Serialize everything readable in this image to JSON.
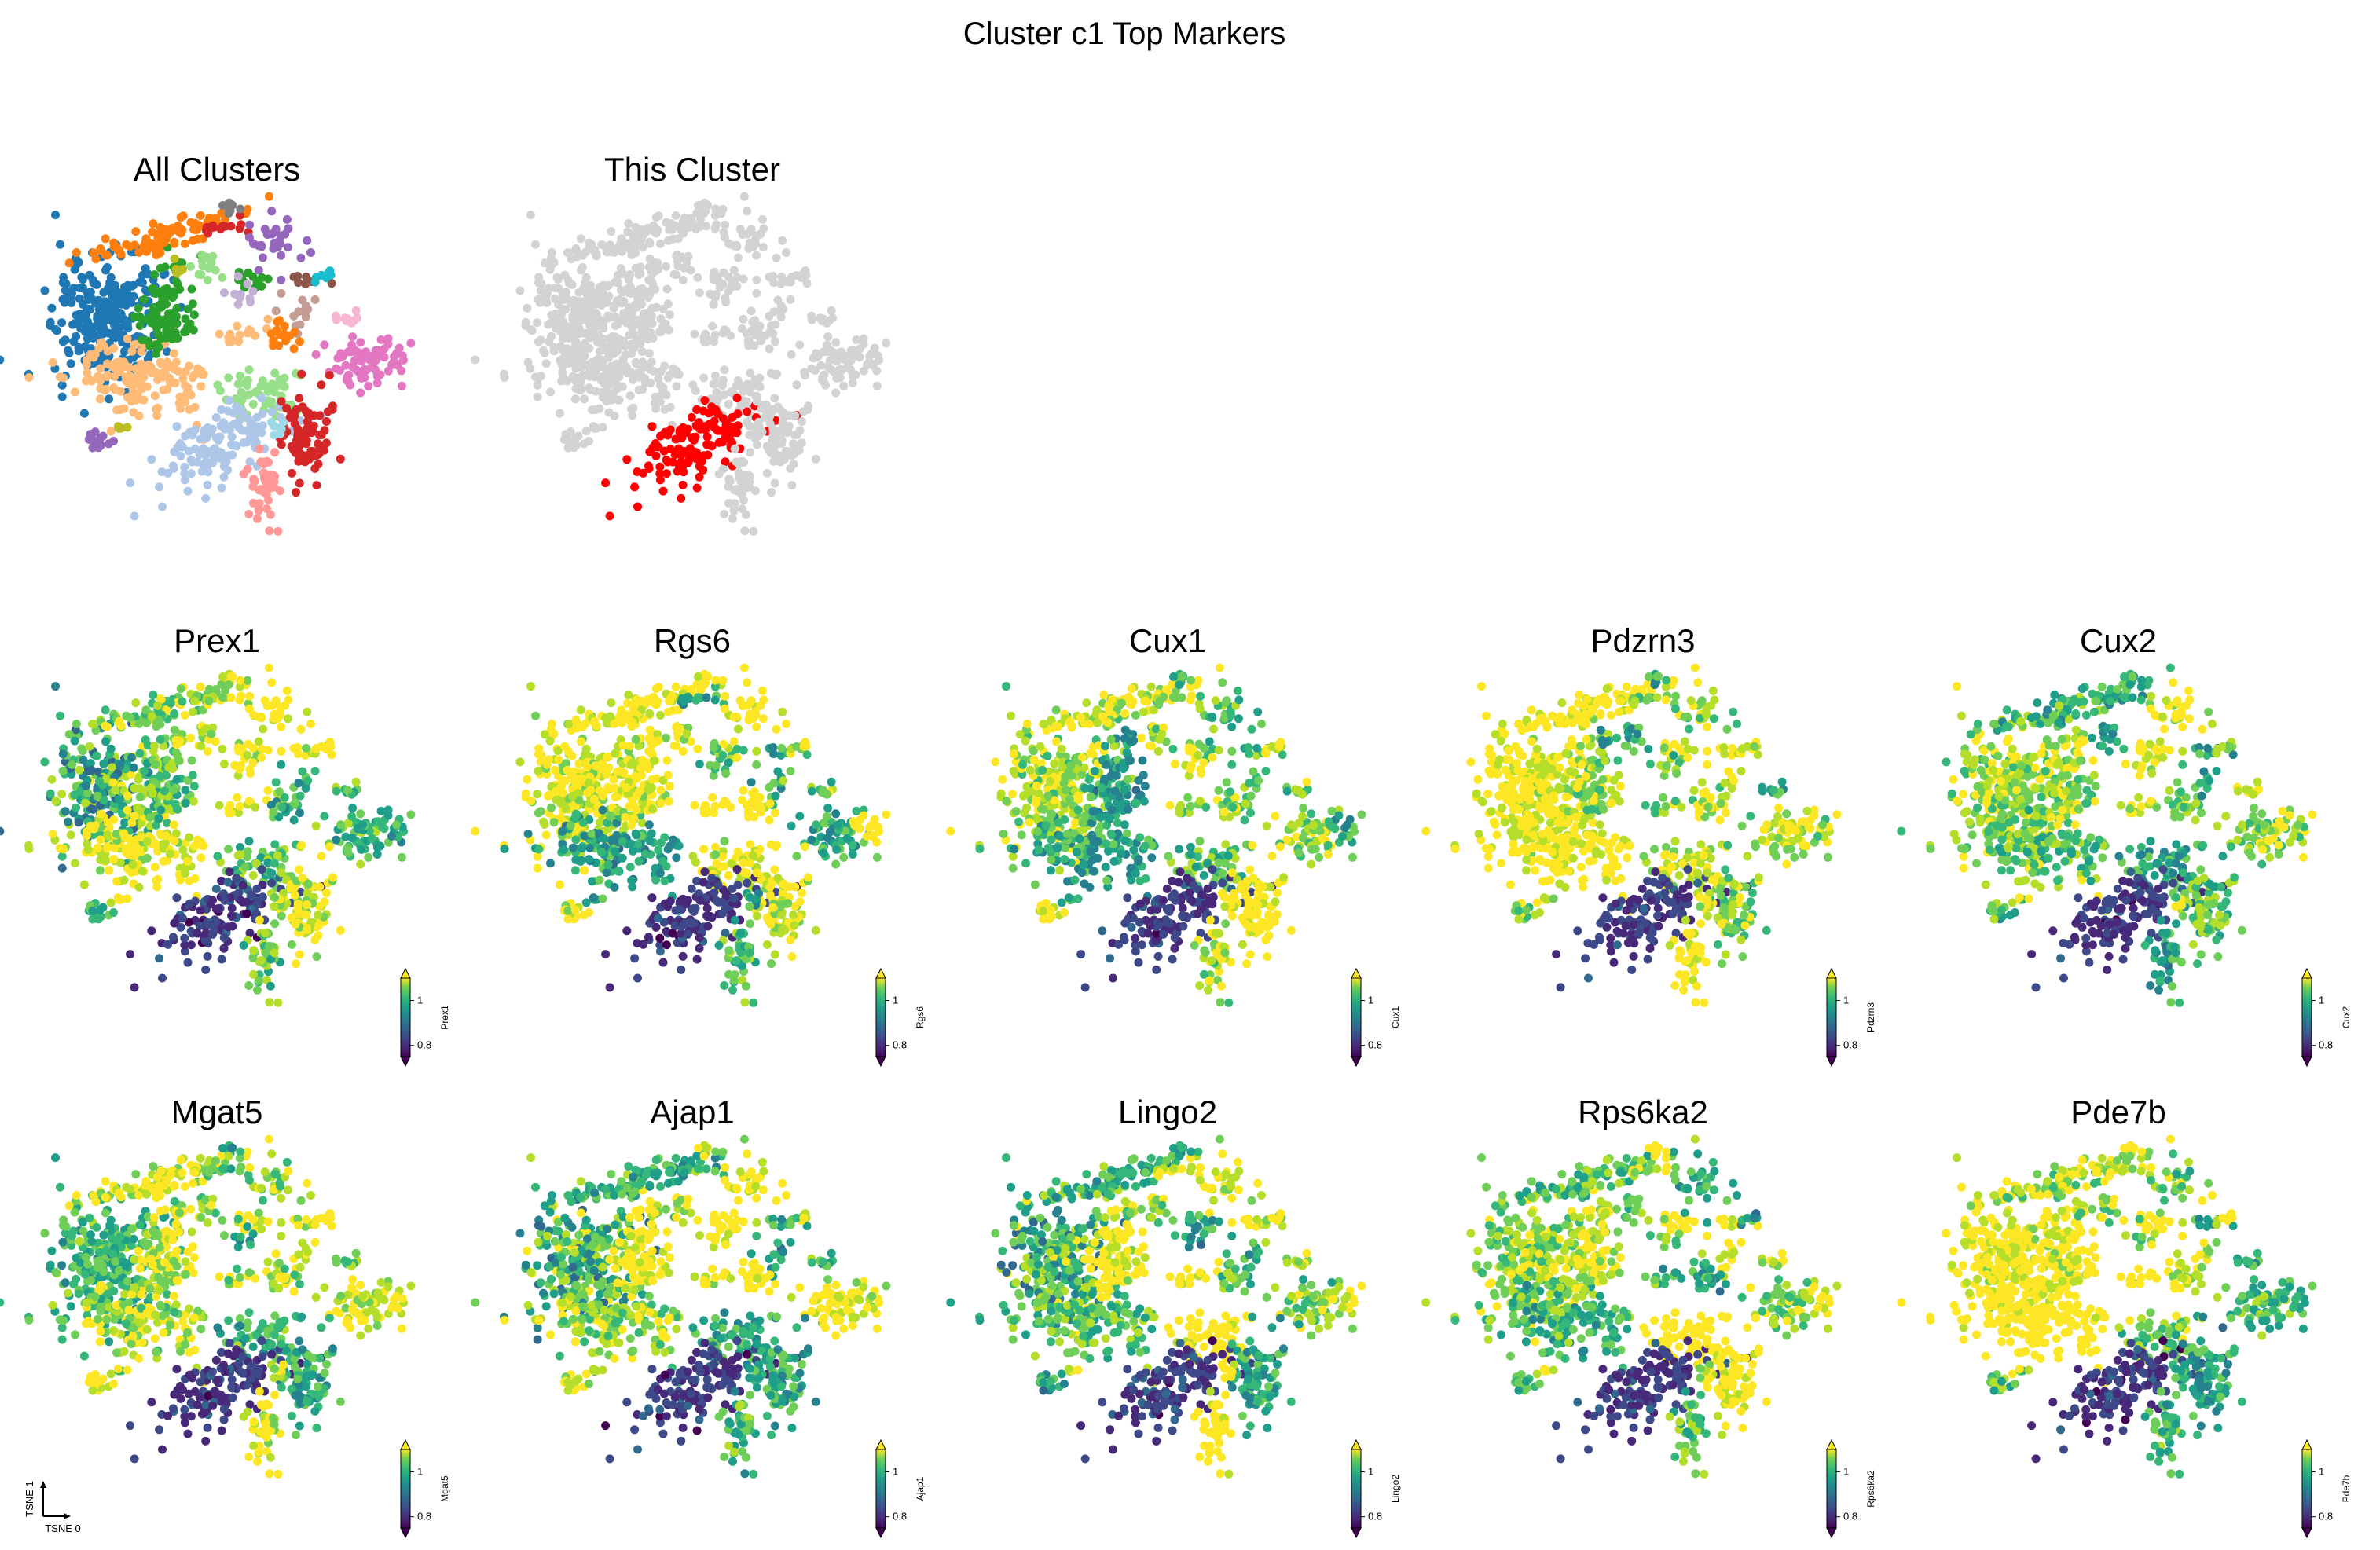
{
  "figure": {
    "title": "Cluster c1 Top Markers"
  },
  "chart_data": [
    {
      "type": "scatter",
      "title": "All Clusters",
      "coloring": "categorical cluster labels (tab20 palette), no legend",
      "palette": [
        "#1f77b4",
        "#ffbb78",
        "#2ca02c",
        "#aec7e8",
        "#98df8a",
        "#d62728",
        "#ff9896",
        "#ff7f0e",
        "#9467bd",
        "#c5b0d5",
        "#e377c2",
        "#f7b6d2",
        "#8c564b",
        "#c49c94",
        "#7f7f7f",
        "#bcbd22",
        "#17becf",
        "#9edae5"
      ]
    },
    {
      "type": "scatter",
      "title": "This Cluster",
      "coloring": "highlight",
      "highlight_color": "#ff0000",
      "background_color": "#d3d3d3"
    },
    {
      "type": "scatter",
      "title": "Prex1",
      "colormap": "viridis",
      "colorbar": {
        "label": "Prex1",
        "ticks": [
          "1",
          "0.8"
        ],
        "vmin": 0.75,
        "vmax": 1.1,
        "extend": "both"
      }
    },
    {
      "type": "scatter",
      "title": "Rgs6",
      "colormap": "viridis",
      "colorbar": {
        "label": "Rgs6",
        "ticks": [
          "1",
          "0.8"
        ],
        "vmin": 0.75,
        "vmax": 1.1,
        "extend": "both"
      }
    },
    {
      "type": "scatter",
      "title": "Cux1",
      "colormap": "viridis",
      "colorbar": {
        "label": "Cux1",
        "ticks": [
          "1",
          "0.8"
        ],
        "vmin": 0.75,
        "vmax": 1.1,
        "extend": "both"
      }
    },
    {
      "type": "scatter",
      "title": "Pdzrn3",
      "colormap": "viridis",
      "colorbar": {
        "label": "Pdzrn3",
        "ticks": [
          "1",
          "0.8"
        ],
        "vmin": 0.75,
        "vmax": 1.1,
        "extend": "both"
      }
    },
    {
      "type": "scatter",
      "title": "Cux2",
      "colormap": "viridis",
      "colorbar": {
        "label": "Cux2",
        "ticks": [
          "1",
          "0.8"
        ],
        "vmin": 0.75,
        "vmax": 1.1,
        "extend": "both"
      }
    },
    {
      "type": "scatter",
      "title": "Mgat5",
      "colormap": "viridis",
      "colorbar": {
        "label": "Mgat5",
        "ticks": [
          "1",
          "0.8"
        ],
        "vmin": 0.75,
        "vmax": 1.1,
        "extend": "both"
      }
    },
    {
      "type": "scatter",
      "title": "Ajap1",
      "colormap": "viridis",
      "colorbar": {
        "label": "Ajap1",
        "ticks": [
          "1",
          "0.8"
        ],
        "vmin": 0.75,
        "vmax": 1.1,
        "extend": "both"
      }
    },
    {
      "type": "scatter",
      "title": "Lingo2",
      "colormap": "viridis",
      "colorbar": {
        "label": "Lingo2",
        "ticks": [
          "1",
          "0.8"
        ],
        "vmin": 0.75,
        "vmax": 1.1,
        "extend": "both"
      }
    },
    {
      "type": "scatter",
      "title": "Rps6ka2",
      "colormap": "viridis",
      "colorbar": {
        "label": "Rps6ka2",
        "ticks": [
          "1",
          "0.8"
        ],
        "vmin": 0.75,
        "vmax": 1.1,
        "extend": "both"
      }
    },
    {
      "type": "scatter",
      "title": "Pde7b",
      "colormap": "viridis",
      "colorbar": {
        "label": "Pde7b",
        "ticks": [
          "1",
          "0.8"
        ],
        "vmin": 0.75,
        "vmax": 1.1,
        "extend": "both"
      }
    }
  ],
  "axis_indicator": {
    "x_label": "TSNE 0",
    "y_label": "TSNE 1"
  }
}
